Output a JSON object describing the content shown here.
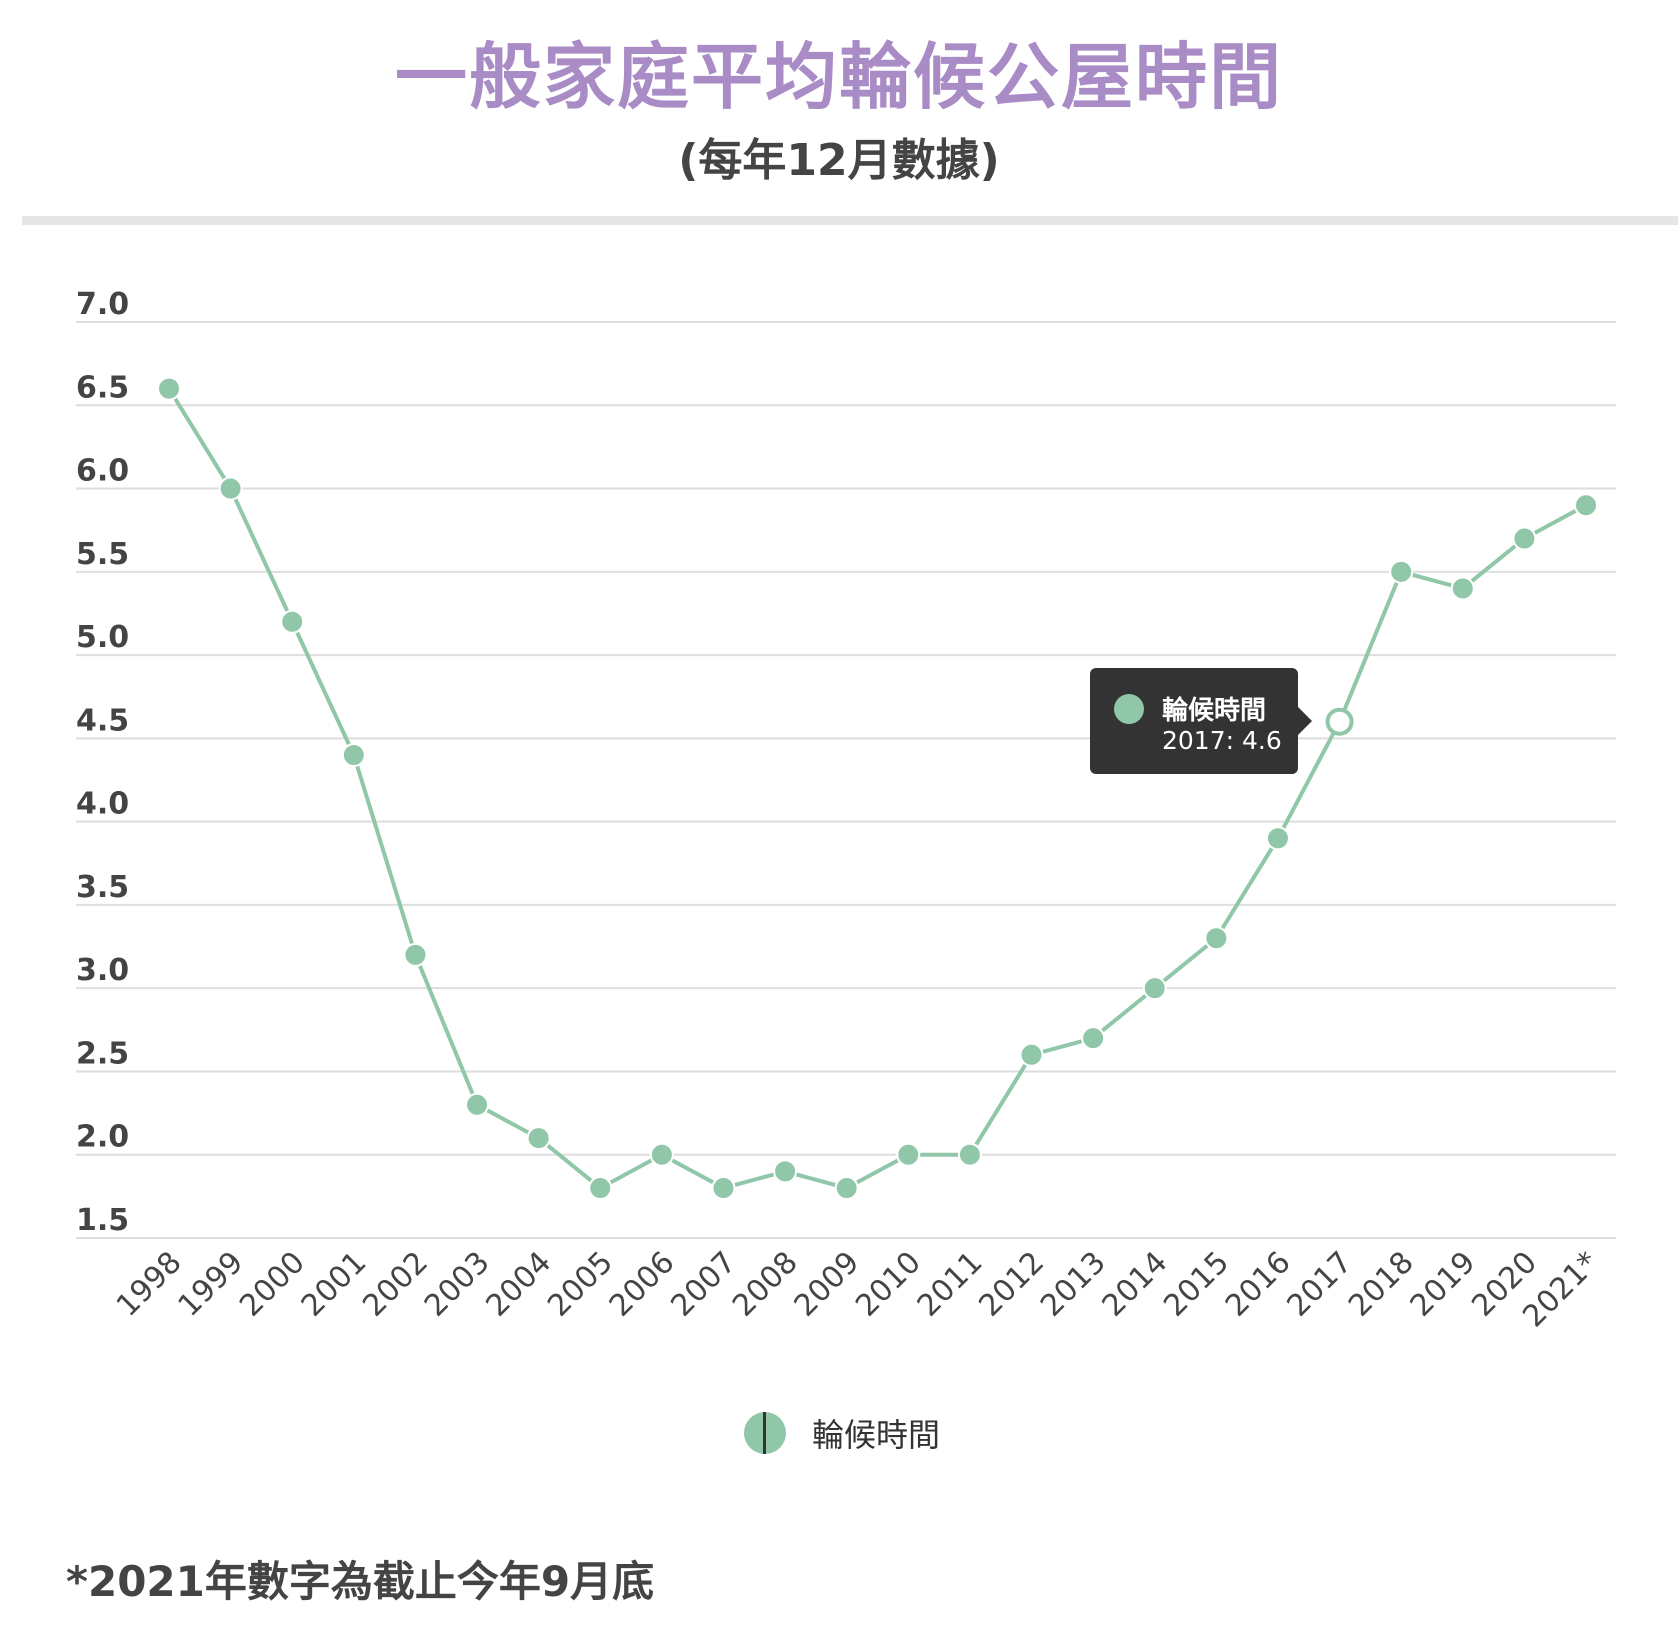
{
  "title": "一般家庭平均輪候公屋時間",
  "subtitle": "(每年12月數據)",
  "footnote": "*2021年數字為截止今年9月底",
  "colors": {
    "title": "#a98bc6",
    "text": "#444444",
    "series": "#8fc7a8",
    "grid": "#dedede",
    "tooltip_bg": "#333333"
  },
  "tooltip": {
    "series_name": "輪候時間",
    "label": "2017: 4.6"
  },
  "chart_data": {
    "type": "line",
    "title": "一般家庭平均輪候公屋時間",
    "subtitle": "(每年12月數據)",
    "xlabel": "",
    "ylabel": "",
    "ylim": [
      1.5,
      7.0
    ],
    "yticks": [
      "1.5",
      "2.0",
      "2.5",
      "3.0",
      "3.5",
      "4.0",
      "4.5",
      "5.0",
      "5.5",
      "6.0",
      "6.5",
      "7.0"
    ],
    "grid": true,
    "legend": "bottom-center",
    "categories": [
      "1998",
      "1999",
      "2000",
      "2001",
      "2002",
      "2003",
      "2004",
      "2005",
      "2006",
      "2007",
      "2008",
      "2009",
      "2010",
      "2011",
      "2012",
      "2013",
      "2014",
      "2015",
      "2016",
      "2017",
      "2018",
      "2019",
      "2020",
      "2021*"
    ],
    "series": [
      {
        "name": "輪候時間",
        "values": [
          6.6,
          6.0,
          5.2,
          4.4,
          3.2,
          2.3,
          2.1,
          1.8,
          2.0,
          1.8,
          1.9,
          1.8,
          2.0,
          2.0,
          2.6,
          2.7,
          3.0,
          3.3,
          3.9,
          4.6,
          5.5,
          5.4,
          5.7,
          5.9
        ]
      }
    ],
    "highlighted_point": {
      "category": "2017",
      "value": 4.6
    }
  }
}
